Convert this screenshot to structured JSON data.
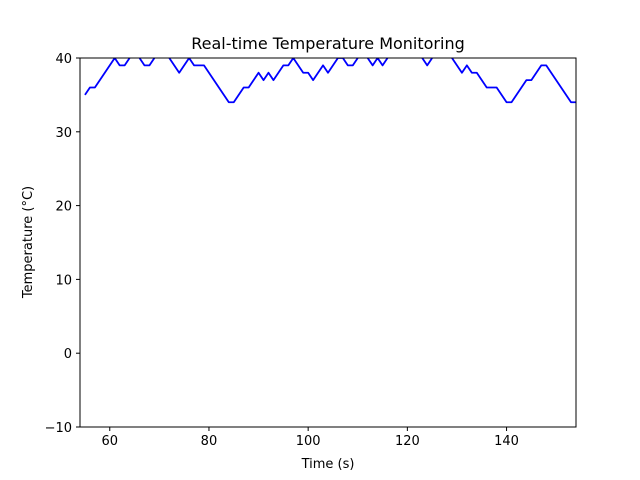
{
  "chart_data": {
    "type": "line",
    "title": "Real-time Temperature Monitoring",
    "xlabel": "Time (s)",
    "ylabel": "Temperature (°C)",
    "xlim": [
      54,
      154
    ],
    "ylim": [
      -10,
      40
    ],
    "x_ticks": [
      60,
      80,
      100,
      120,
      140
    ],
    "y_ticks": [
      -10,
      0,
      10,
      20,
      30,
      40
    ],
    "grid": false,
    "series": [
      {
        "color": "#0000ff",
        "x": [
          55,
          56,
          57,
          58,
          59,
          60,
          61,
          62,
          63,
          64,
          65,
          66,
          67,
          68,
          69,
          70,
          71,
          72,
          73,
          74,
          75,
          76,
          77,
          78,
          79,
          80,
          81,
          82,
          83,
          84,
          85,
          86,
          87,
          88,
          89,
          90,
          91,
          92,
          93,
          94,
          95,
          96,
          97,
          98,
          99,
          100,
          101,
          102,
          103,
          104,
          105,
          106,
          107,
          108,
          109,
          110,
          111,
          112,
          113,
          114,
          115,
          116,
          117,
          118,
          119,
          120,
          121,
          122,
          123,
          124,
          125,
          126,
          127,
          128,
          129,
          130,
          131,
          132,
          133,
          134,
          135,
          136,
          137,
          138,
          139,
          140,
          141,
          142,
          143,
          144,
          145,
          146,
          147,
          148,
          149,
          150,
          151,
          152,
          153,
          154
        ],
        "y": [
          35,
          36,
          36,
          37,
          38,
          39,
          40,
          39,
          39,
          40,
          41,
          40,
          39,
          39,
          40,
          41,
          41,
          40,
          39,
          38,
          39,
          40,
          39,
          39,
          39,
          38,
          37,
          36,
          35,
          34,
          34,
          35,
          36,
          36,
          37,
          38,
          37,
          38,
          37,
          38,
          39,
          39,
          40,
          39,
          38,
          38,
          37,
          38,
          39,
          38,
          39,
          40,
          40,
          39,
          39,
          40,
          41,
          40,
          39,
          40,
          39,
          40,
          41,
          41,
          42,
          41,
          41,
          41,
          40,
          39,
          40,
          41,
          41,
          41,
          40,
          39,
          38,
          39,
          38,
          38,
          37,
          36,
          36,
          36,
          35,
          34,
          34,
          35,
          36,
          37,
          37,
          38,
          39,
          39,
          38,
          37,
          36,
          35,
          34,
          34
        ]
      }
    ]
  }
}
